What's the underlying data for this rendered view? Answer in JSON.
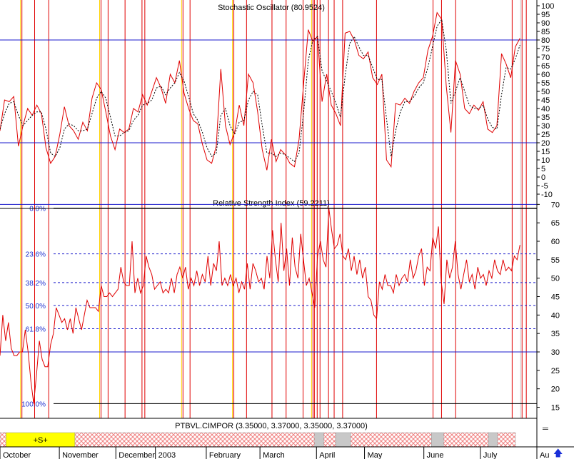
{
  "chart_data": [
    {
      "type": "line",
      "title": "Stochastic Oscillator (80.9524)",
      "ylim": [
        -10,
        100
      ],
      "yticks": [
        100,
        95,
        90,
        85,
        80,
        75,
        70,
        65,
        60,
        55,
        50,
        45,
        40,
        35,
        30,
        25,
        20,
        15,
        10,
        5,
        0,
        -5,
        -10
      ],
      "reference_lines": [
        80,
        20
      ],
      "series": [
        {
          "style": "solid",
          "color": "#e00000",
          "values": [
            27,
            45,
            44,
            47,
            18,
            30,
            40,
            36,
            42,
            37,
            17,
            8,
            12,
            25,
            41,
            30,
            27,
            22,
            32,
            27,
            46,
            55,
            51,
            38,
            24,
            16,
            28,
            26,
            28,
            40,
            38,
            48,
            42,
            50,
            58,
            52,
            43,
            60,
            55,
            68,
            49,
            40,
            33,
            31,
            19,
            10,
            8,
            18,
            63,
            30,
            19,
            26,
            42,
            30,
            60,
            55,
            38,
            16,
            4,
            22,
            9,
            16,
            13,
            8,
            6,
            22,
            55,
            86,
            79,
            82,
            44,
            60,
            42,
            37,
            30,
            84,
            85,
            80,
            71,
            69,
            73,
            58,
            54,
            60,
            10,
            6,
            43,
            42,
            46,
            43,
            50,
            55,
            58,
            74,
            82,
            96,
            92,
            53,
            26,
            68,
            60,
            40,
            37,
            42,
            39,
            44,
            28,
            26,
            30,
            72,
            66,
            58,
            76,
            81
          ]
        },
        {
          "style": "dashed",
          "color": "#000000",
          "values": [
            28,
            37,
            43,
            44,
            36,
            30,
            33,
            36,
            38,
            38,
            28,
            14,
            12,
            17,
            28,
            31,
            30,
            27,
            27,
            28,
            37,
            46,
            50,
            46,
            35,
            24,
            24,
            26,
            27,
            33,
            36,
            42,
            43,
            45,
            52,
            53,
            48,
            52,
            55,
            61,
            56,
            47,
            37,
            33,
            26,
            17,
            12,
            14,
            36,
            40,
            30,
            25,
            32,
            33,
            45,
            50,
            48,
            30,
            14,
            14,
            12,
            14,
            13,
            11,
            9,
            14,
            38,
            68,
            80,
            82,
            62,
            56,
            50,
            43,
            35,
            59,
            78,
            82,
            76,
            71,
            71,
            64,
            57,
            57,
            34,
            12,
            27,
            38,
            44,
            44,
            47,
            52,
            55,
            64,
            76,
            88,
            92,
            74,
            43,
            50,
            58,
            50,
            42,
            40,
            40,
            42,
            34,
            29,
            28,
            48,
            64,
            63,
            69,
            77
          ]
        }
      ],
      "event_lines": [
        7,
        12,
        17,
        35,
        38,
        44,
        50,
        51,
        64,
        67,
        82,
        87,
        96,
        101,
        107,
        110,
        111,
        112,
        113,
        116,
        118,
        121,
        133,
        153,
        156,
        161,
        181,
        184,
        186
      ]
    },
    {
      "type": "line",
      "title": "Relative Strength Index (59.2211)",
      "ylim": [
        12,
        72
      ],
      "yticks": [
        70,
        65,
        60,
        55,
        50,
        45,
        40,
        35,
        30,
        25,
        20,
        15
      ],
      "reference_lines": [
        70,
        30
      ],
      "fibonacci": [
        {
          "label": "0.0%",
          "value": 69
        },
        {
          "label": "23.6%",
          "value": 56.6
        },
        {
          "label": "38.2%",
          "value": 48.8
        },
        {
          "label": "50.0%",
          "value": 42.6
        },
        {
          "label": "61.8%",
          "value": 36.3
        },
        {
          "label": "100.0%",
          "value": 16
        }
      ],
      "series": [
        {
          "style": "solid",
          "color": "#e00000",
          "values": [
            29,
            40,
            33,
            38,
            31,
            29,
            29,
            30,
            30,
            36,
            30,
            22,
            16,
            24,
            33,
            28,
            26,
            26,
            32,
            35,
            42,
            40,
            38,
            39,
            36,
            39,
            35,
            42,
            39,
            36,
            40,
            44,
            42,
            42,
            42,
            41,
            48,
            45,
            45,
            46,
            45,
            46,
            47,
            53,
            49,
            48,
            48,
            60,
            46,
            50,
            46,
            48,
            56,
            53,
            51,
            47,
            48,
            49,
            46,
            47,
            46,
            50,
            46,
            51,
            53,
            50,
            53,
            47,
            50,
            48,
            52,
            48,
            51,
            49,
            56,
            48,
            54,
            52,
            60,
            48,
            50,
            48,
            51,
            48,
            50,
            46,
            49,
            47,
            54,
            47,
            54,
            52,
            49,
            50,
            47,
            56,
            50,
            63,
            55,
            49,
            65,
            52,
            58,
            48,
            61,
            53,
            50,
            62,
            55,
            48,
            50,
            46,
            42,
            56,
            60,
            55,
            53,
            69,
            63,
            58,
            59,
            62,
            56,
            55,
            58,
            52,
            56,
            51,
            55,
            50,
            53,
            45,
            44,
            40,
            39,
            49,
            47,
            51,
            48,
            48,
            46,
            51,
            48,
            50,
            51,
            49,
            55,
            50,
            52,
            56,
            58,
            48,
            53,
            52,
            61,
            58,
            64,
            49,
            43,
            55,
            50,
            53,
            60,
            51,
            47,
            51,
            55,
            49,
            51,
            47,
            53,
            50,
            51,
            48,
            52,
            50,
            55,
            52,
            51,
            55,
            52,
            53,
            52,
            56,
            55,
            59
          ]
        }
      ]
    },
    {
      "type": "heatmap",
      "title": "PTBVL.CIMPOR (3.35000, 3.37000, 3.35000, 3.37000)",
      "signal_label": "+S+",
      "segments": [
        {
          "state": "hatch",
          "span": 2
        },
        {
          "state": "yellow",
          "span": 23
        },
        {
          "state": "hatch",
          "span": 80
        },
        {
          "state": "gray",
          "span": 3
        },
        {
          "state": "hatch",
          "span": 4
        },
        {
          "state": "gray",
          "span": 5
        },
        {
          "state": "hatch",
          "span": 27
        },
        {
          "state": "gray",
          "span": 4
        },
        {
          "state": "hatch",
          "span": 15
        },
        {
          "state": "gray",
          "span": 3
        },
        {
          "state": "hatch",
          "span": 6
        }
      ]
    }
  ],
  "x_axis": {
    "months": [
      {
        "label": "October",
        "index": 0
      },
      {
        "label": "November",
        "index": 21
      },
      {
        "label": "December",
        "index": 41
      },
      {
        "label": "2003",
        "index": 55
      },
      {
        "label": "February",
        "index": 73
      },
      {
        "label": "March",
        "index": 92
      },
      {
        "label": "April",
        "index": 112
      },
      {
        "label": "May",
        "index": 129
      },
      {
        "label": "June",
        "index": 150
      },
      {
        "label": "July",
        "index": 170
      },
      {
        "label": "Au",
        "index": 190
      }
    ]
  },
  "colors": {
    "price_line": "#e00000",
    "reference_line": "#1a1acc",
    "fib_text": "#1f2fd0",
    "signal_fill": "#ffff00",
    "hatch": "#f08080",
    "event_red": "#e00000",
    "event_yellow": "#ffd400",
    "event_gray": "#c8c8c8"
  },
  "icons": {
    "scroll_up": "up-arrow-icon"
  }
}
